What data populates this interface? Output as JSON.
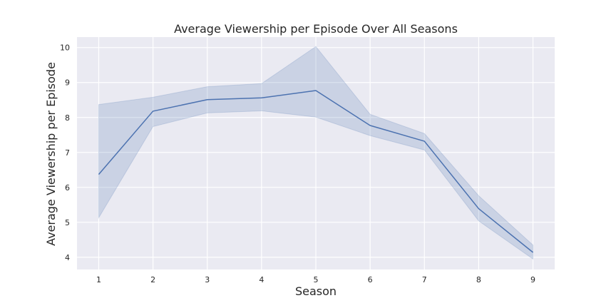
{
  "chart_data": {
    "type": "line",
    "title": "Average Viewership per Episode Over All Seasons",
    "xlabel": "Season",
    "ylabel": "Average Viewership per Episode",
    "x": [
      1,
      2,
      3,
      4,
      5,
      6,
      7,
      8,
      9
    ],
    "series": [
      {
        "values": [
          6.37,
          8.18,
          8.51,
          8.56,
          8.77,
          7.77,
          7.32,
          5.39,
          4.14
        ],
        "ci_upper": [
          8.37,
          8.58,
          8.88,
          8.97,
          10.03,
          8.09,
          7.54,
          5.76,
          4.35
        ],
        "ci_lower": [
          5.13,
          7.74,
          8.13,
          8.19,
          8.01,
          7.48,
          7.07,
          5.04,
          3.95
        ]
      }
    ],
    "xticks": [
      "1",
      "2",
      "3",
      "4",
      "5",
      "6",
      "7",
      "8",
      "9"
    ],
    "yticks": [
      "4",
      "5",
      "6",
      "7",
      "8",
      "9",
      "10"
    ],
    "xlim": [
      0.6,
      9.4
    ],
    "ylim": [
      3.65,
      10.3
    ],
    "grid": true,
    "colors": {
      "line": "#4c72b0",
      "band": "#4c72b0",
      "plot_background": "#eaeaf2",
      "grid": "#ffffff"
    }
  }
}
